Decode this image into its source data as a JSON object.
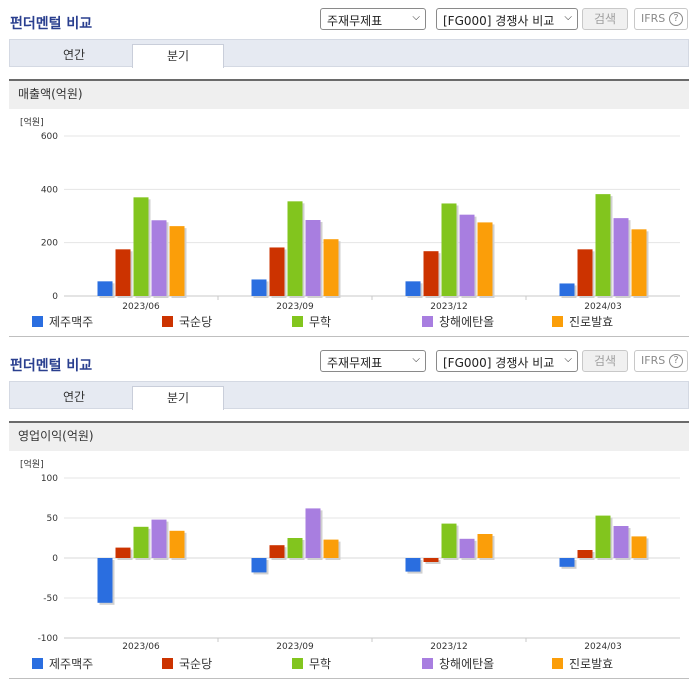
{
  "panels": [
    {
      "title": "펀더멘털 비교",
      "select1": "주재무제표",
      "select2": "[FG000] 경쟁사 비교",
      "search_btn": "검색",
      "ifrs_label": "IFRS",
      "help_icon": "?",
      "tabs": [
        "연간",
        "분기"
      ],
      "active_tab": 1,
      "metric_header": "매출액(억원)",
      "unit": "[억원]"
    },
    {
      "title": "펀더멘털 비교",
      "select1": "주재무제표",
      "select2": "[FG000] 경쟁사 비교",
      "search_btn": "검색",
      "ifrs_label": "IFRS",
      "help_icon": "?",
      "tabs": [
        "연간",
        "분기"
      ],
      "active_tab": 1,
      "metric_header": "영업이익(억원)",
      "unit": "[억원]"
    }
  ],
  "chart_data": [
    {
      "type": "bar",
      "ylabel": "[억원]",
      "ylim": [
        0,
        600
      ],
      "yticks": [
        0,
        200,
        400,
        600
      ],
      "categories": [
        "2023/06",
        "2023/09",
        "2023/12",
        "2024/03"
      ],
      "series": [
        {
          "name": "제주맥주",
          "color": "#2a6ee0",
          "values": [
            55,
            62,
            55,
            47
          ]
        },
        {
          "name": "국순당",
          "color": "#cc3300",
          "values": [
            175,
            182,
            168,
            175
          ]
        },
        {
          "name": "무학",
          "color": "#82c51e",
          "values": [
            370,
            355,
            347,
            382
          ]
        },
        {
          "name": "창해에탄올",
          "color": "#a87ee0",
          "values": [
            284,
            285,
            305,
            292
          ]
        },
        {
          "name": "진로발효",
          "color": "#fb9e09",
          "values": [
            262,
            213,
            276,
            250
          ]
        }
      ]
    },
    {
      "type": "bar",
      "ylabel": "[억원]",
      "ylim": [
        -100,
        100
      ],
      "yticks": [
        -100,
        -50,
        0,
        50,
        100
      ],
      "categories": [
        "2023/06",
        "2023/09",
        "2023/12",
        "2024/03"
      ],
      "series": [
        {
          "name": "제주맥주",
          "color": "#2a6ee0",
          "values": [
            -56,
            -18,
            -17,
            -11
          ]
        },
        {
          "name": "국순당",
          "color": "#cc3300",
          "values": [
            13,
            16,
            -5,
            10
          ]
        },
        {
          "name": "무학",
          "color": "#82c51e",
          "values": [
            39,
            25,
            43,
            53
          ]
        },
        {
          "name": "창해에탄올",
          "color": "#a87ee0",
          "values": [
            48,
            62,
            24,
            40
          ]
        },
        {
          "name": "진로발효",
          "color": "#fb9e09",
          "values": [
            34,
            23,
            30,
            27
          ]
        }
      ]
    }
  ]
}
